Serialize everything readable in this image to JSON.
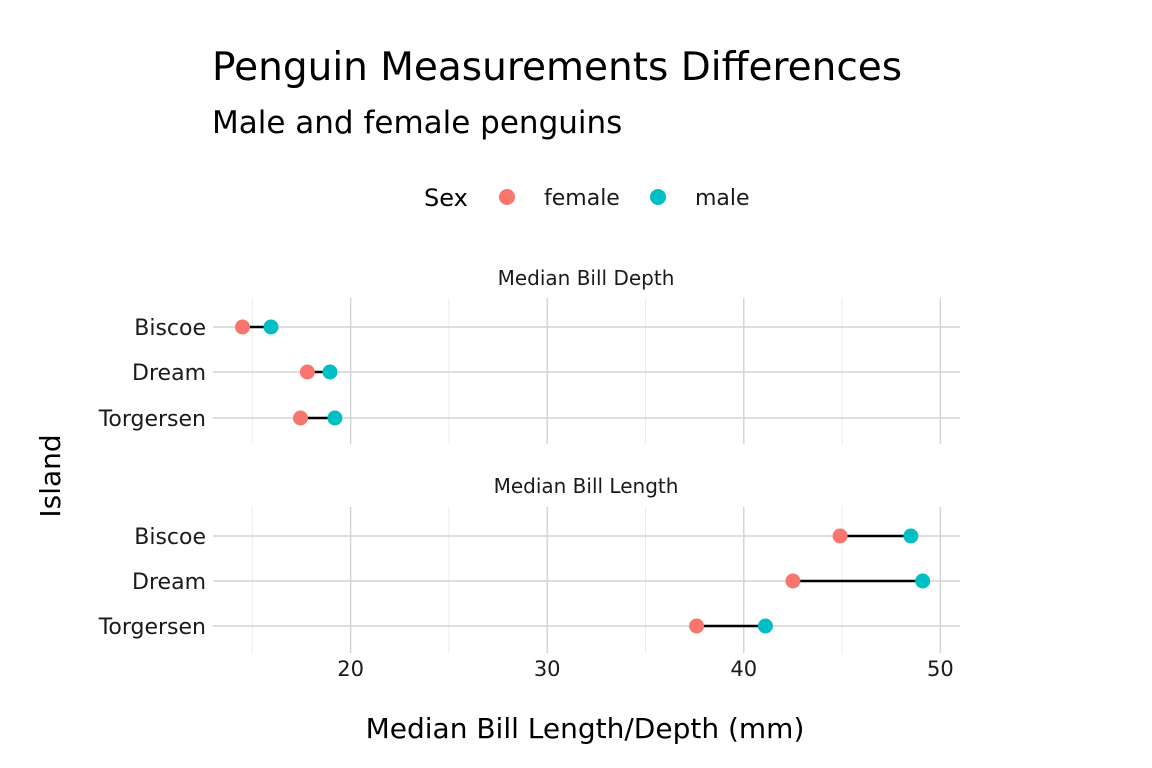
{
  "chart_data": {
    "type": "dumbbell",
    "title": "Penguin Measurements Differences",
    "subtitle": "Male and female penguins",
    "xlabel": "Median Bill Length/Depth (mm)",
    "ylabel": "Island",
    "xlim": [
      13,
      51
    ],
    "x_ticks": [
      20,
      30,
      40,
      50
    ],
    "grid": true,
    "legend": {
      "position": "top",
      "title": "Sex",
      "entries": [
        {
          "name": "female",
          "color": "#F8766D"
        },
        {
          "name": "male",
          "color": "#00BFC4"
        }
      ]
    },
    "categories": [
      "Biscoe",
      "Dream",
      "Torgersen"
    ],
    "panels": [
      {
        "label": "Median Bill Depth",
        "series": [
          {
            "name": "female",
            "values": [
              14.5,
              17.8,
              17.45
            ]
          },
          {
            "name": "male",
            "values": [
              15.95,
              18.95,
              19.2
            ]
          }
        ]
      },
      {
        "label": "Median Bill Length",
        "series": [
          {
            "name": "female",
            "values": [
              44.9,
              42.5,
              37.6
            ]
          },
          {
            "name": "male",
            "values": [
              48.5,
              49.1,
              41.1
            ]
          }
        ]
      }
    ]
  }
}
